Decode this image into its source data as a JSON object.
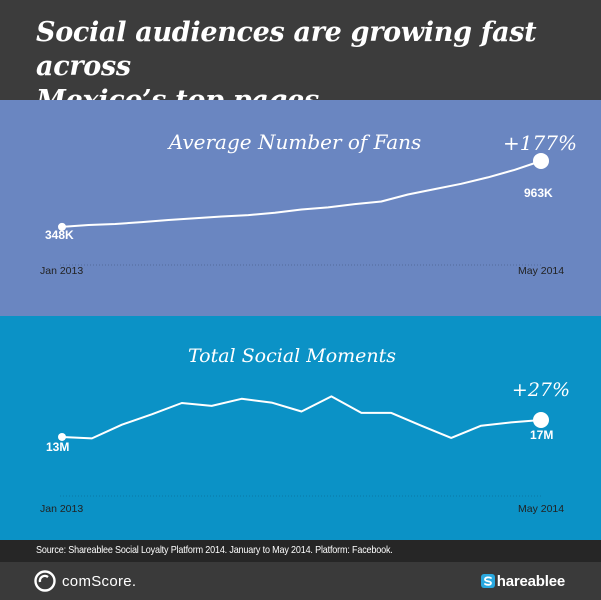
{
  "header": {
    "title_line1": "Social audiences are growing fast across",
    "title_line2": "Mexico’s top pages"
  },
  "colors": {
    "header_bg": "#3c3c3c",
    "fans_bg": "#6a86c1",
    "moments_bg": "#0b92c6",
    "line": "#ffffff",
    "source_bg": "#262626"
  },
  "chart_data": [
    {
      "type": "line",
      "title": "Average Number of Fans",
      "x_start_label": "Jan 2013",
      "x_end_label": "May 2014",
      "start_label": "348K",
      "end_label": "963K",
      "change_label": "+177%",
      "unit": "K",
      "values": [
        348,
        365,
        375,
        392,
        412,
        428,
        445,
        458,
        480,
        510,
        530,
        560,
        585,
        650,
        700,
        750,
        810,
        880,
        963
      ]
    },
    {
      "type": "line",
      "title": "Total Social Moments",
      "x_start_label": "Jan 2013",
      "x_end_label": "May 2014",
      "start_label": "13M",
      "end_label": "17M",
      "change_label": "+27%",
      "unit": "M",
      "values": [
        13.4,
        13.1,
        16.0,
        18.2,
        20.6,
        20.0,
        21.5,
        20.7,
        18.8,
        22.0,
        18.5,
        18.5,
        15.8,
        13.2,
        15.8,
        16.5,
        17.0
      ]
    }
  ],
  "source": {
    "text": "Source: Shareablee Social Loyalty Platform 2014. January to May 2014.  Platform: Facebook."
  },
  "footer": {
    "comscore": "comScore.",
    "shareablee": "hareablee"
  }
}
